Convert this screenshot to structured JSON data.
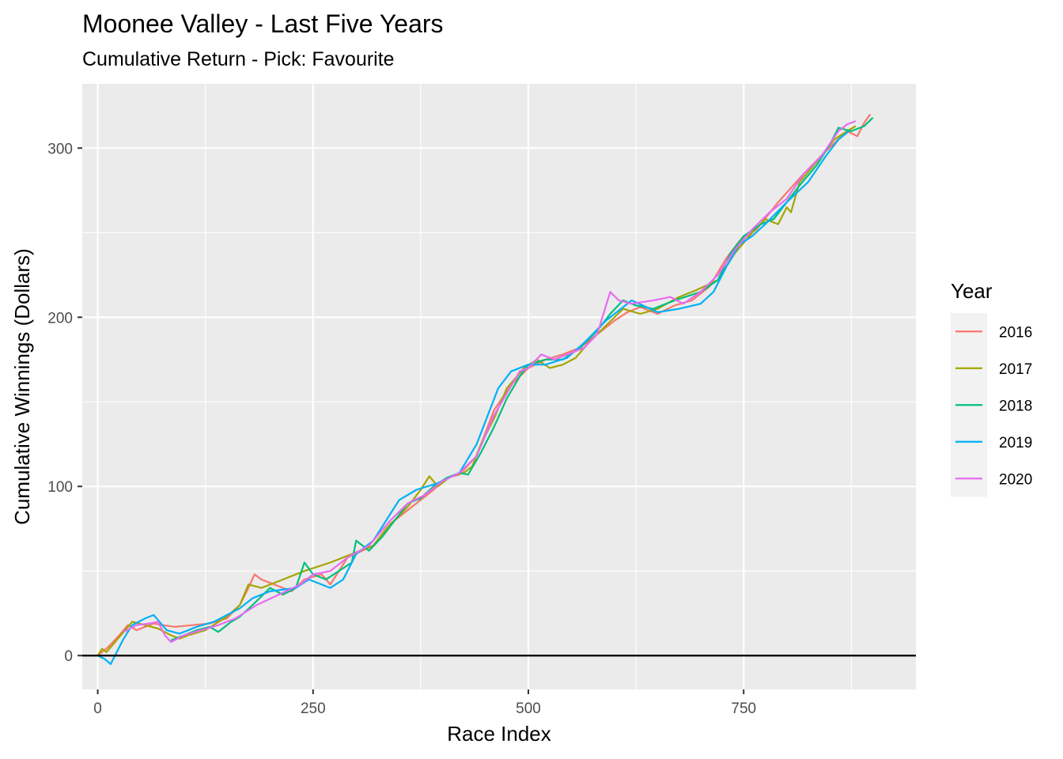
{
  "chart_data": {
    "type": "line",
    "title": "Moonee Valley - Last Five Years",
    "subtitle": "Cumulative Return - Pick: Favourite",
    "xlabel": "Race Index",
    "ylabel": "Cumulative Winnings (Dollars)",
    "xlim": [
      -18,
      950
    ],
    "ylim": [
      -20,
      338
    ],
    "x_ticks": [
      0,
      250,
      500,
      750
    ],
    "x_tick_labels": [
      "0",
      "250",
      "500",
      "750"
    ],
    "y_ticks": [
      0,
      100,
      200,
      300
    ],
    "y_tick_labels": [
      "0",
      "100",
      "200",
      "300"
    ],
    "grid": true,
    "reference_line_y": 0,
    "legend": {
      "title": "Year",
      "position": "right"
    },
    "series": [
      {
        "name": "2016",
        "color": "#F8766D",
        "points": [
          [
            0,
            0
          ],
          [
            12,
            5
          ],
          [
            25,
            12
          ],
          [
            35,
            18
          ],
          [
            45,
            15
          ],
          [
            55,
            17
          ],
          [
            65,
            19
          ],
          [
            75,
            18
          ],
          [
            90,
            17
          ],
          [
            110,
            18
          ],
          [
            130,
            19
          ],
          [
            150,
            22
          ],
          [
            165,
            30
          ],
          [
            175,
            40
          ],
          [
            182,
            48
          ],
          [
            190,
            45
          ],
          [
            200,
            43
          ],
          [
            215,
            40
          ],
          [
            225,
            38
          ],
          [
            240,
            45
          ],
          [
            260,
            48
          ],
          [
            270,
            42
          ],
          [
            290,
            58
          ],
          [
            320,
            65
          ],
          [
            340,
            78
          ],
          [
            360,
            86
          ],
          [
            375,
            92
          ],
          [
            390,
            98
          ],
          [
            405,
            105
          ],
          [
            420,
            107
          ],
          [
            440,
            118
          ],
          [
            460,
            145
          ],
          [
            480,
            160
          ],
          [
            500,
            170
          ],
          [
            520,
            175
          ],
          [
            540,
            178
          ],
          [
            560,
            182
          ],
          [
            580,
            190
          ],
          [
            600,
            198
          ],
          [
            615,
            203
          ],
          [
            630,
            206
          ],
          [
            650,
            202
          ],
          [
            670,
            207
          ],
          [
            690,
            210
          ],
          [
            710,
            218
          ],
          [
            730,
            235
          ],
          [
            745,
            245
          ],
          [
            765,
            252
          ],
          [
            790,
            268
          ],
          [
            820,
            285
          ],
          [
            845,
            298
          ],
          [
            870,
            310
          ],
          [
            882,
            307
          ],
          [
            890,
            315
          ],
          [
            897,
            320
          ]
        ]
      },
      {
        "name": "2017",
        "color": "#A3A500",
        "points": [
          [
            0,
            0
          ],
          [
            5,
            4
          ],
          [
            10,
            2
          ],
          [
            20,
            8
          ],
          [
            30,
            14
          ],
          [
            40,
            20
          ],
          [
            55,
            18
          ],
          [
            70,
            16
          ],
          [
            85,
            12
          ],
          [
            95,
            10
          ],
          [
            105,
            12
          ],
          [
            125,
            15
          ],
          [
            150,
            23
          ],
          [
            165,
            30
          ],
          [
            175,
            42
          ],
          [
            190,
            40
          ],
          [
            210,
            44
          ],
          [
            240,
            50
          ],
          [
            270,
            55
          ],
          [
            295,
            60
          ],
          [
            320,
            65
          ],
          [
            335,
            75
          ],
          [
            360,
            88
          ],
          [
            375,
            98
          ],
          [
            385,
            106
          ],
          [
            395,
            100
          ],
          [
            410,
            106
          ],
          [
            425,
            108
          ],
          [
            435,
            112
          ],
          [
            445,
            125
          ],
          [
            460,
            140
          ],
          [
            475,
            158
          ],
          [
            495,
            170
          ],
          [
            510,
            175
          ],
          [
            525,
            170
          ],
          [
            540,
            172
          ],
          [
            555,
            176
          ],
          [
            570,
            185
          ],
          [
            590,
            195
          ],
          [
            610,
            205
          ],
          [
            630,
            202
          ],
          [
            650,
            205
          ],
          [
            675,
            212
          ],
          [
            695,
            216
          ],
          [
            720,
            222
          ],
          [
            740,
            238
          ],
          [
            760,
            250
          ],
          [
            775,
            258
          ],
          [
            790,
            255
          ],
          [
            800,
            265
          ],
          [
            805,
            262
          ],
          [
            815,
            280
          ],
          [
            835,
            292
          ],
          [
            855,
            305
          ],
          [
            870,
            310
          ],
          [
            880,
            313
          ]
        ]
      },
      {
        "name": "2018",
        "color": "#00BF7D",
        "points": [
          [
            85,
            9
          ],
          [
            100,
            12
          ],
          [
            115,
            15
          ],
          [
            130,
            17
          ],
          [
            140,
            14
          ],
          [
            155,
            20
          ],
          [
            165,
            23
          ],
          [
            180,
            30
          ],
          [
            200,
            40
          ],
          [
            215,
            36
          ],
          [
            230,
            40
          ],
          [
            240,
            55
          ],
          [
            250,
            48
          ],
          [
            265,
            45
          ],
          [
            280,
            50
          ],
          [
            295,
            55
          ],
          [
            300,
            68
          ],
          [
            315,
            62
          ],
          [
            330,
            70
          ],
          [
            345,
            80
          ],
          [
            360,
            90
          ],
          [
            375,
            93
          ],
          [
            390,
            100
          ],
          [
            405,
            105
          ],
          [
            420,
            108
          ],
          [
            430,
            107
          ],
          [
            445,
            120
          ],
          [
            460,
            135
          ],
          [
            475,
            152
          ],
          [
            490,
            165
          ],
          [
            500,
            172
          ],
          [
            520,
            175
          ],
          [
            540,
            175
          ],
          [
            560,
            182
          ],
          [
            580,
            192
          ],
          [
            595,
            202
          ],
          [
            610,
            210
          ],
          [
            625,
            207
          ],
          [
            645,
            205
          ],
          [
            670,
            210
          ],
          [
            700,
            215
          ],
          [
            720,
            222
          ],
          [
            735,
            238
          ],
          [
            750,
            248
          ],
          [
            770,
            255
          ],
          [
            785,
            258
          ],
          [
            800,
            268
          ],
          [
            815,
            278
          ],
          [
            835,
            290
          ],
          [
            850,
            302
          ],
          [
            860,
            312
          ],
          [
            875,
            310
          ],
          [
            890,
            313
          ],
          [
            900,
            318
          ]
        ]
      },
      {
        "name": "2019",
        "color": "#00B0F6",
        "points": [
          [
            0,
            0
          ],
          [
            8,
            -2
          ],
          [
            15,
            -5
          ],
          [
            22,
            2
          ],
          [
            30,
            10
          ],
          [
            40,
            18
          ],
          [
            55,
            22
          ],
          [
            65,
            24
          ],
          [
            80,
            15
          ],
          [
            95,
            13
          ],
          [
            115,
            17
          ],
          [
            135,
            20
          ],
          [
            150,
            24
          ],
          [
            165,
            28
          ],
          [
            180,
            34
          ],
          [
            200,
            38
          ],
          [
            230,
            40
          ],
          [
            245,
            45
          ],
          [
            270,
            40
          ],
          [
            285,
            45
          ],
          [
            300,
            60
          ],
          [
            320,
            68
          ],
          [
            335,
            80
          ],
          [
            350,
            92
          ],
          [
            370,
            98
          ],
          [
            395,
            102
          ],
          [
            420,
            108
          ],
          [
            440,
            125
          ],
          [
            465,
            158
          ],
          [
            480,
            168
          ],
          [
            500,
            172
          ],
          [
            520,
            172
          ],
          [
            545,
            176
          ],
          [
            565,
            185
          ],
          [
            590,
            198
          ],
          [
            620,
            210
          ],
          [
            650,
            203
          ],
          [
            675,
            205
          ],
          [
            700,
            208
          ],
          [
            715,
            215
          ],
          [
            730,
            230
          ],
          [
            745,
            243
          ],
          [
            760,
            248
          ],
          [
            775,
            255
          ],
          [
            800,
            268
          ],
          [
            825,
            280
          ],
          [
            845,
            295
          ],
          [
            860,
            305
          ],
          [
            872,
            310
          ]
        ]
      },
      {
        "name": "2020",
        "color": "#E76BF3",
        "points": [
          [
            30,
            14
          ],
          [
            45,
            18
          ],
          [
            60,
            19
          ],
          [
            70,
            20
          ],
          [
            78,
            12
          ],
          [
            85,
            8
          ],
          [
            100,
            12
          ],
          [
            120,
            15
          ],
          [
            140,
            18
          ],
          [
            160,
            22
          ],
          [
            185,
            30
          ],
          [
            210,
            36
          ],
          [
            235,
            42
          ],
          [
            250,
            48
          ],
          [
            270,
            50
          ],
          [
            290,
            58
          ],
          [
            315,
            65
          ],
          [
            340,
            80
          ],
          [
            360,
            90
          ],
          [
            380,
            95
          ],
          [
            400,
            103
          ],
          [
            420,
            108
          ],
          [
            440,
            118
          ],
          [
            460,
            142
          ],
          [
            475,
            155
          ],
          [
            490,
            168
          ],
          [
            500,
            170
          ],
          [
            515,
            178
          ],
          [
            530,
            175
          ],
          [
            545,
            178
          ],
          [
            565,
            182
          ],
          [
            580,
            190
          ],
          [
            595,
            215
          ],
          [
            605,
            210
          ],
          [
            620,
            208
          ],
          [
            645,
            210
          ],
          [
            665,
            212
          ],
          [
            680,
            208
          ],
          [
            700,
            215
          ],
          [
            720,
            225
          ],
          [
            740,
            240
          ],
          [
            760,
            252
          ],
          [
            780,
            262
          ],
          [
            800,
            270
          ],
          [
            820,
            285
          ],
          [
            840,
            295
          ],
          [
            860,
            310
          ],
          [
            870,
            314
          ],
          [
            880,
            316
          ]
        ]
      }
    ]
  }
}
